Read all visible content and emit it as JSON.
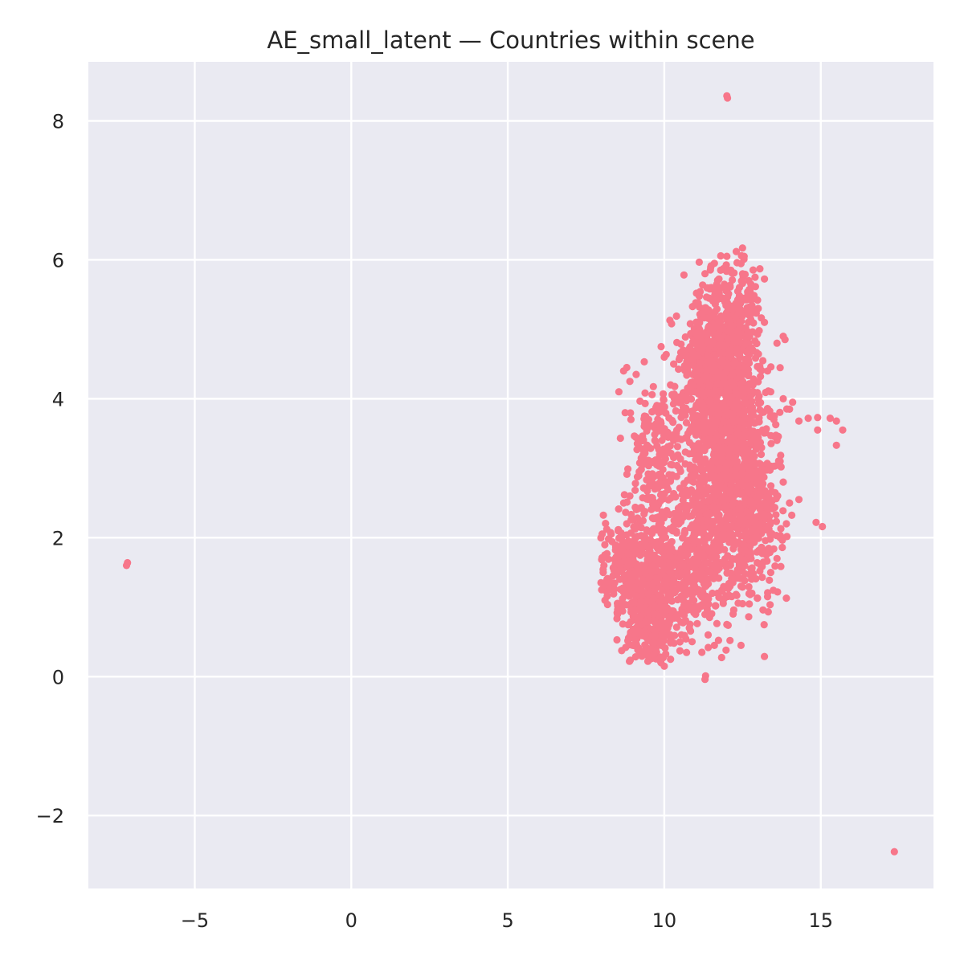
{
  "chart_data": {
    "type": "scatter",
    "title": "AE_small_latent — Countries within scene",
    "xlabel": "",
    "ylabel": "",
    "xlim": [
      -8.4,
      18.6
    ],
    "ylim": [
      -3.05,
      8.85
    ],
    "x_ticks": [
      -5,
      0,
      5,
      10,
      15
    ],
    "x_tick_labels": [
      "−5",
      "0",
      "5",
      "10",
      "15"
    ],
    "y_ticks": [
      -2,
      0,
      2,
      4,
      6,
      8
    ],
    "y_tick_labels": [
      "−2",
      "0",
      "2",
      "4",
      "6",
      "8"
    ],
    "grid": true,
    "colors": {
      "background": "#EAEAF2",
      "grid": "#FFFFFF",
      "points": "#F7768A"
    },
    "series": [
      {
        "points": [
          [
            12.0,
            8.36
          ],
          [
            12.02,
            8.33
          ],
          [
            -7.15,
            1.64
          ],
          [
            -7.18,
            1.6
          ],
          [
            17.35,
            -2.52
          ],
          [
            11.3,
            -0.04
          ],
          [
            11.32,
            0.01
          ],
          [
            13.2,
            0.29
          ],
          [
            12.45,
            0.45
          ],
          [
            12.1,
            0.52
          ],
          [
            13.9,
            1.13
          ],
          [
            15.05,
            2.16
          ],
          [
            14.85,
            2.22
          ],
          [
            14.3,
            2.55
          ],
          [
            14.9,
            3.55
          ],
          [
            15.5,
            3.33
          ],
          [
            14.3,
            3.68
          ],
          [
            14.6,
            3.72
          ],
          [
            14.9,
            3.73
          ],
          [
            15.3,
            3.72
          ],
          [
            15.5,
            3.68
          ],
          [
            15.7,
            3.55
          ],
          [
            14.0,
            3.85
          ],
          [
            13.8,
            4.0
          ],
          [
            14.1,
            3.95
          ],
          [
            11.8,
            5.85
          ],
          [
            11.6,
            5.95
          ],
          [
            12.0,
            6.05
          ],
          [
            12.3,
            6.12
          ],
          [
            12.5,
            6.17
          ],
          [
            12.55,
            6.05
          ],
          [
            12.9,
            5.75
          ],
          [
            11.3,
            5.8
          ],
          [
            11.5,
            5.6
          ],
          [
            12.0,
            5.55
          ],
          [
            12.7,
            5.7
          ],
          [
            8.0,
            1.25
          ],
          [
            8.05,
            1.5
          ],
          [
            8.1,
            1.75
          ],
          [
            8.1,
            1.9
          ],
          [
            8.3,
            2.05
          ],
          [
            8.2,
            1.35
          ],
          [
            8.8,
            4.45
          ],
          [
            8.7,
            4.4
          ],
          [
            9.1,
            4.35
          ],
          [
            8.9,
            4.25
          ],
          [
            8.55,
            4.1
          ],
          [
            8.75,
            3.8
          ],
          [
            9.2,
            3.3
          ],
          [
            9.2,
            2.95
          ],
          [
            8.9,
            2.6
          ],
          [
            8.8,
            2.2
          ],
          [
            8.5,
            1.6
          ],
          [
            9.0,
            1.4
          ],
          [
            9.2,
            1.1
          ],
          [
            9.3,
            0.9
          ],
          [
            9.5,
            0.7
          ],
          [
            9.6,
            0.5
          ],
          [
            9.7,
            0.3
          ],
          [
            9.9,
            0.2
          ],
          [
            10.0,
            0.15
          ],
          [
            10.2,
            0.25
          ],
          [
            10.5,
            0.5
          ],
          [
            10.8,
            0.7
          ],
          [
            11.0,
            0.9
          ],
          [
            11.4,
            0.6
          ],
          [
            11.2,
            0.35
          ],
          [
            11.6,
            0.45
          ],
          [
            12.0,
            0.75
          ],
          [
            12.2,
            0.9
          ],
          [
            12.5,
            1.05
          ],
          [
            12.8,
            1.2
          ],
          [
            13.3,
            1.15
          ],
          [
            13.4,
            1.5
          ],
          [
            13.6,
            1.7
          ],
          [
            13.7,
            2.0
          ],
          [
            13.9,
            2.2
          ],
          [
            14.0,
            2.5
          ],
          [
            13.8,
            2.8
          ],
          [
            13.7,
            3.1
          ],
          [
            13.6,
            3.4
          ],
          [
            13.5,
            3.7
          ],
          [
            13.4,
            4.1
          ],
          [
            13.3,
            4.4
          ],
          [
            13.6,
            4.8
          ],
          [
            13.8,
            4.9
          ],
          [
            13.2,
            5.1
          ],
          [
            13.0,
            5.3
          ],
          [
            12.7,
            5.5
          ],
          [
            12.4,
            5.6
          ],
          [
            11.1,
            5.1
          ],
          [
            10.9,
            4.9
          ],
          [
            10.6,
            4.7
          ],
          [
            10.3,
            4.5
          ],
          [
            10.0,
            4.6
          ],
          [
            9.9,
            4.75
          ],
          [
            10.2,
            4.2
          ],
          [
            9.9,
            3.9
          ],
          [
            9.5,
            3.7
          ],
          [
            9.7,
            3.4
          ],
          [
            9.4,
            3.1
          ],
          [
            9.7,
            2.7
          ],
          [
            10.0,
            2.3
          ],
          [
            10.3,
            2.1
          ],
          [
            10.6,
            1.8
          ],
          [
            10.9,
            1.6
          ],
          [
            11.3,
            1.4
          ],
          [
            11.7,
            1.2
          ],
          [
            12.1,
            1.3
          ],
          [
            12.4,
            1.6
          ],
          [
            12.7,
            1.9
          ],
          [
            13.0,
            2.2
          ],
          [
            13.1,
            2.6
          ],
          [
            13.2,
            3.0
          ]
        ]
      }
    ]
  }
}
